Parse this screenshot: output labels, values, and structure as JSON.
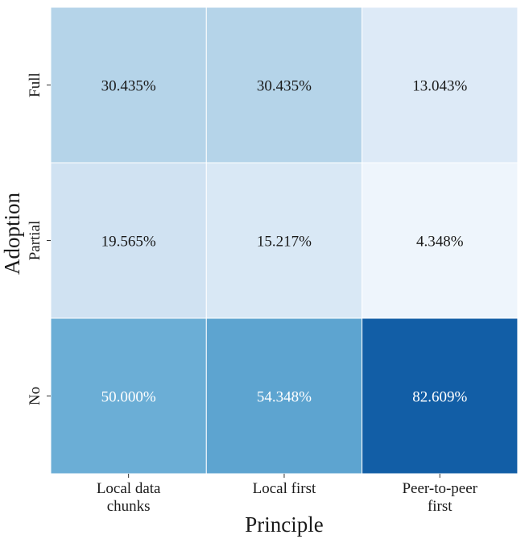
{
  "chart_data": {
    "type": "heatmap",
    "title": "",
    "xlabel": "Principle",
    "ylabel": "Adoption",
    "columns": [
      [
        "Local data",
        "chunks"
      ],
      [
        "Local first"
      ],
      [
        "Peer-to-peer",
        "first"
      ]
    ],
    "rows": [
      "Full",
      "Partial",
      "No"
    ],
    "values": [
      [
        30.435,
        30.435,
        13.043
      ],
      [
        19.565,
        15.217,
        4.348
      ],
      [
        50.0,
        54.348,
        82.609
      ]
    ],
    "value_suffix": "%",
    "value_decimals": 3,
    "colormap": "Blues",
    "vmin": 0,
    "vmax": 100,
    "colorbar": false
  }
}
